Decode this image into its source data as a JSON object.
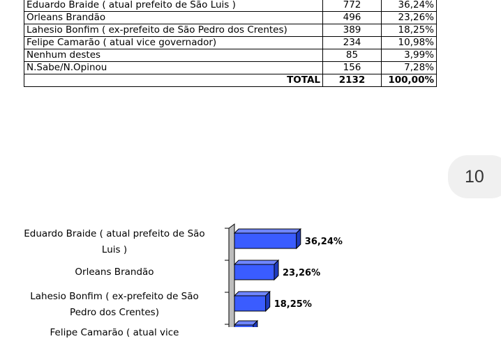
{
  "table": {
    "rows": [
      {
        "candidate": "Eduardo Braide ( atual prefeito de São Luis )",
        "votes": "772",
        "percent": "36,24%"
      },
      {
        "candidate": "Orleans Brandão",
        "votes": "496",
        "percent": "23,26%"
      },
      {
        "candidate": "Lahesio Bonfim ( ex-prefeito de São Pedro dos Crentes)",
        "votes": "389",
        "percent": "18,25%"
      },
      {
        "candidate": "Felipe Camarão ( atual vice governador)",
        "votes": "234",
        "percent": "10,98%"
      },
      {
        "candidate": "Nenhum destes",
        "votes": "85",
        "percent": "3,99%"
      },
      {
        "candidate": "N.Sabe/N.Opinou",
        "votes": "156",
        "percent": "7,28%"
      }
    ],
    "total": {
      "label": "TOTAL",
      "votes": "2132",
      "percent": "100,00%"
    }
  },
  "page_number": "10",
  "chart_data": {
    "type": "bar",
    "orientation": "horizontal",
    "categories": [
      [
        "Eduardo Braide ( atual prefeito de São",
        "Luis )"
      ],
      [
        "Orleans Brandão"
      ],
      [
        "Lahesio Bonfim ( ex-prefeito de São",
        "Pedro dos Crentes)"
      ],
      [
        "Felipe Camarão ( atual vice"
      ]
    ],
    "values": [
      36.24,
      23.26,
      18.25,
      10.98
    ],
    "value_labels": [
      "36,24%",
      "23,26%",
      "18,25%",
      ""
    ],
    "bar_color": "#3a5cff",
    "xlim": [
      0,
      100
    ],
    "grid": false,
    "legend": false
  }
}
